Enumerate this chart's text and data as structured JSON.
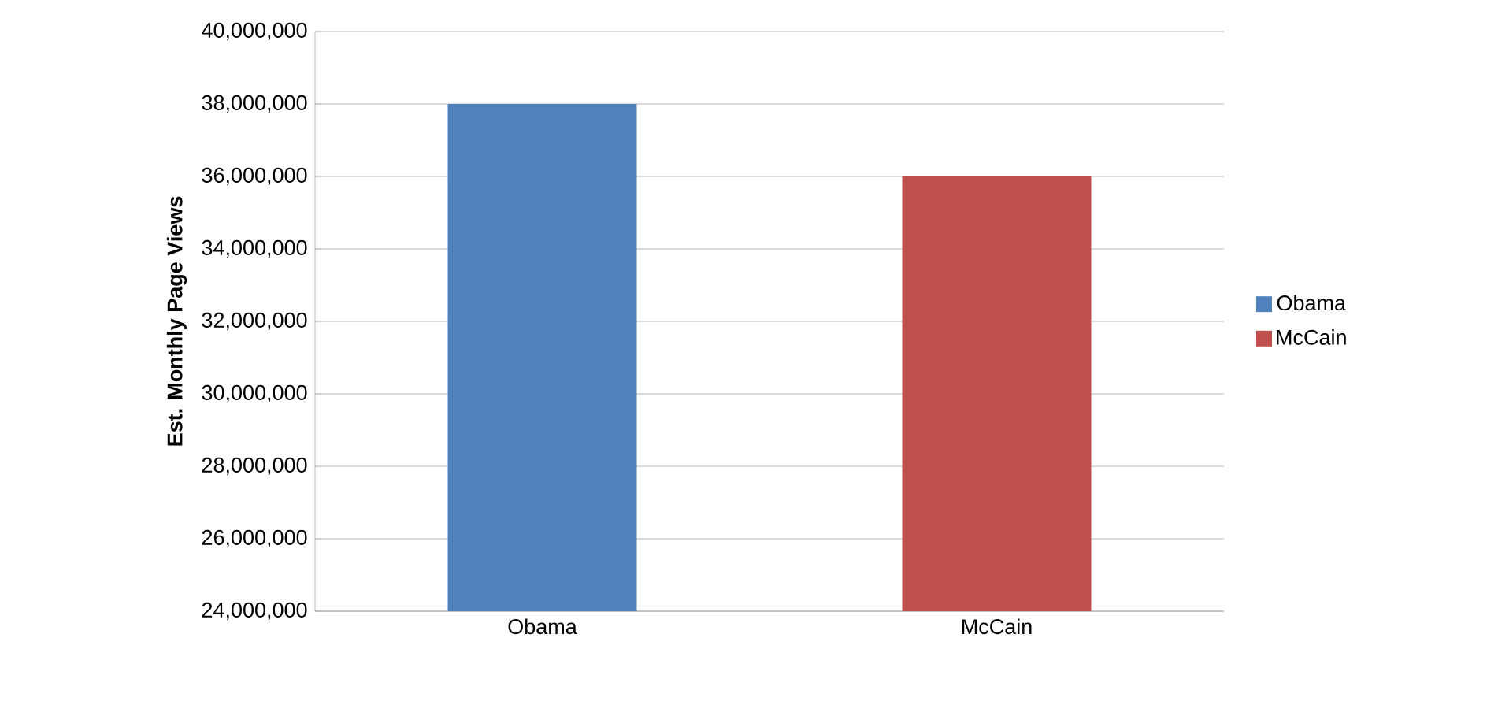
{
  "chart_data": {
    "type": "bar",
    "ylabel": "Est. Monthly Page Views",
    "categories": [
      "Obama",
      "McCain"
    ],
    "series": [
      {
        "name": "Obama",
        "color": "#4f81bd",
        "values": [
          38000000,
          null
        ]
      },
      {
        "name": "McCain",
        "color": "#c0504d",
        "values": [
          null,
          36000000
        ]
      }
    ],
    "ylim": [
      24000000,
      40000000
    ],
    "yticks": [
      {
        "value": 24000000,
        "label": "24,000,000"
      },
      {
        "value": 26000000,
        "label": "26,000,000"
      },
      {
        "value": 28000000,
        "label": "28,000,000"
      },
      {
        "value": 30000000,
        "label": "30,000,000"
      },
      {
        "value": 32000000,
        "label": "32,000,000"
      },
      {
        "value": 34000000,
        "label": "34,000,000"
      },
      {
        "value": 36000000,
        "label": "36,000,000"
      },
      {
        "value": 38000000,
        "label": "38,000,000"
      },
      {
        "value": 40000000,
        "label": "40,000,000"
      }
    ],
    "grid": "y",
    "legend": "right"
  }
}
